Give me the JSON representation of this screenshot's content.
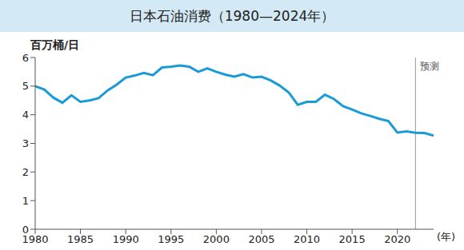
{
  "chart_data": {
    "type": "line",
    "title": "日本石油消费（1980—2024年）",
    "y_label": "百万桶/日",
    "x_label": "(年)",
    "x": [
      1980,
      1981,
      1982,
      1983,
      1984,
      1985,
      1986,
      1987,
      1988,
      1989,
      1990,
      1991,
      1992,
      1993,
      1994,
      1995,
      1996,
      1997,
      1998,
      1999,
      2000,
      2001,
      2002,
      2003,
      2004,
      2005,
      2006,
      2007,
      2008,
      2009,
      2010,
      2011,
      2012,
      2013,
      2014,
      2015,
      2016,
      2017,
      2018,
      2019,
      2020,
      2021,
      2022,
      2023,
      2024
    ],
    "values": [
      5.0,
      4.88,
      4.6,
      4.42,
      4.68,
      4.45,
      4.5,
      4.58,
      4.85,
      5.05,
      5.3,
      5.37,
      5.46,
      5.38,
      5.65,
      5.68,
      5.72,
      5.68,
      5.5,
      5.62,
      5.5,
      5.4,
      5.33,
      5.42,
      5.3,
      5.33,
      5.2,
      5.02,
      4.78,
      4.35,
      4.45,
      4.45,
      4.7,
      4.55,
      4.3,
      4.18,
      4.05,
      3.96,
      3.86,
      3.78,
      3.38,
      3.42,
      3.37,
      3.36,
      3.27
    ],
    "color": "#1a9ad6",
    "xlim": [
      1980,
      2024
    ],
    "xticks": [
      1980,
      1985,
      1990,
      1995,
      2000,
      2005,
      2010,
      2015,
      2020
    ],
    "ylim": [
      0,
      6
    ],
    "yticks": [
      0,
      1,
      2,
      3,
      4,
      5,
      6
    ],
    "grid": false,
    "annotations": [
      {
        "text": "预测",
        "x": 2022
      }
    ]
  }
}
